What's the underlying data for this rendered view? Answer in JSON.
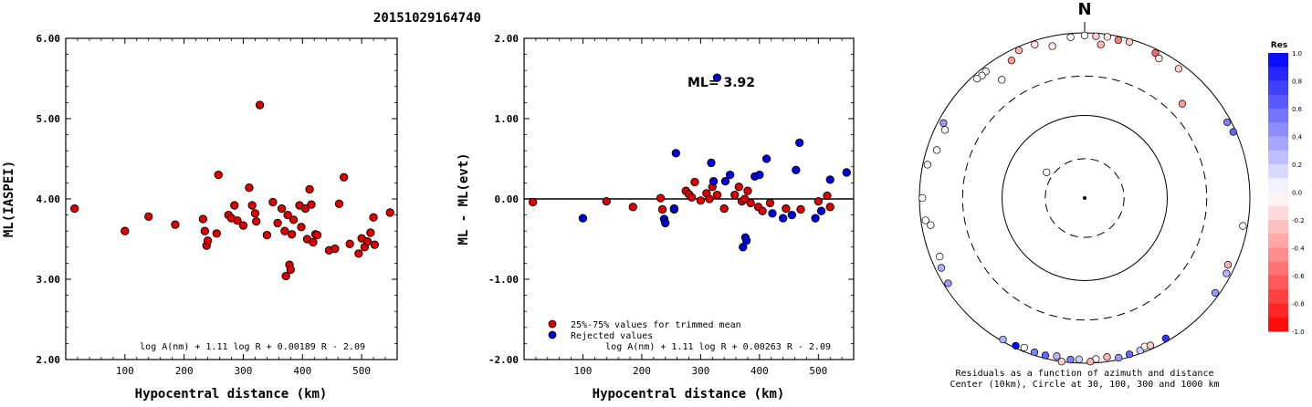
{
  "figure_title": "20151029164740",
  "chart_data": [
    {
      "type": "scatter",
      "title": "",
      "xlabel": "Hypocentral distance (km)",
      "ylabel": "ML(IASPEI)",
      "xlim": [
        0,
        560
      ],
      "ylim": [
        2.0,
        6.0
      ],
      "x_ticks": [
        "100",
        "200",
        "300",
        "400",
        "500"
      ],
      "y_ticks": [
        "2.00",
        "3.00",
        "4.00",
        "5.00",
        "6.00"
      ],
      "grid": false,
      "annotation": "log A(nm) + 1.11 log R + 0.00189 R - 2.09",
      "series": [
        {
          "color": "#dd0000",
          "points": [
            [
              15,
              3.88
            ],
            [
              100,
              3.6
            ],
            [
              140,
              3.78
            ],
            [
              185,
              3.68
            ],
            [
              232,
              3.75
            ],
            [
              235,
              3.6
            ],
            [
              238,
              3.42
            ],
            [
              240,
              3.48
            ],
            [
              255,
              3.57
            ],
            [
              258,
              4.3
            ],
            [
              275,
              3.8
            ],
            [
              280,
              3.76
            ],
            [
              285,
              3.92
            ],
            [
              290,
              3.73
            ],
            [
              300,
              3.67
            ],
            [
              310,
              4.14
            ],
            [
              315,
              3.92
            ],
            [
              320,
              3.82
            ],
            [
              322,
              3.72
            ],
            [
              328,
              5.17
            ],
            [
              340,
              3.55
            ],
            [
              350,
              3.96
            ],
            [
              358,
              3.7
            ],
            [
              365,
              3.88
            ],
            [
              370,
              3.6
            ],
            [
              372,
              3.04
            ],
            [
              375,
              3.8
            ],
            [
              378,
              3.18
            ],
            [
              380,
              3.12
            ],
            [
              382,
              3.56
            ],
            [
              385,
              3.74
            ],
            [
              395,
              3.92
            ],
            [
              398,
              3.65
            ],
            [
              405,
              3.88
            ],
            [
              408,
              3.5
            ],
            [
              412,
              4.12
            ],
            [
              415,
              3.93
            ],
            [
              418,
              3.46
            ],
            [
              422,
              3.56
            ],
            [
              425,
              3.55
            ],
            [
              445,
              3.36
            ],
            [
              455,
              3.38
            ],
            [
              462,
              3.94
            ],
            [
              470,
              4.27
            ],
            [
              480,
              3.44
            ],
            [
              495,
              3.32
            ],
            [
              500,
              3.51
            ],
            [
              505,
              3.4
            ],
            [
              510,
              3.47
            ],
            [
              515,
              3.58
            ],
            [
              520,
              3.77
            ],
            [
              522,
              3.43
            ],
            [
              548,
              3.83
            ]
          ]
        }
      ]
    },
    {
      "type": "scatter",
      "title": "",
      "xlabel": "Hypocentral distance (km)",
      "ylabel": "ML - ML(evt)",
      "xlim": [
        0,
        560
      ],
      "ylim": [
        -2.0,
        2.0
      ],
      "x_ticks": [
        "100",
        "200",
        "300",
        "400",
        "500"
      ],
      "y_ticks": [
        "-2.00",
        "-1.00",
        "0.00",
        "1.00",
        "2.00"
      ],
      "grid": false,
      "ml_label": "ML= 3.92",
      "zero_line": 0.0,
      "annotation": "log A(nm) + 1.11 log R + 0.00263 R - 2.09",
      "legend_position": "bottom-left",
      "series": [
        {
          "name": "25%-75% values for trimmed mean",
          "color": "#dd0000",
          "points": [
            [
              15,
              -0.04
            ],
            [
              140,
              -0.03
            ],
            [
              185,
              -0.1
            ],
            [
              232,
              0.01
            ],
            [
              235,
              -0.13
            ],
            [
              255,
              -0.13
            ],
            [
              275,
              0.1
            ],
            [
              280,
              0.06
            ],
            [
              285,
              0.02
            ],
            [
              290,
              0.21
            ],
            [
              300,
              -0.02
            ],
            [
              310,
              0.07
            ],
            [
              315,
              0.0
            ],
            [
              320,
              0.15
            ],
            [
              328,
              0.05
            ],
            [
              340,
              -0.12
            ],
            [
              358,
              0.05
            ],
            [
              365,
              0.15
            ],
            [
              370,
              -0.03
            ],
            [
              375,
              0.0
            ],
            [
              380,
              0.1
            ],
            [
              385,
              -0.05
            ],
            [
              398,
              -0.1
            ],
            [
              405,
              -0.15
            ],
            [
              418,
              -0.05
            ],
            [
              445,
              -0.12
            ],
            [
              470,
              -0.13
            ],
            [
              500,
              -0.03
            ],
            [
              515,
              0.04
            ],
            [
              520,
              -0.1
            ]
          ]
        },
        {
          "name": "Rejected values",
          "color": "#0000dd",
          "points": [
            [
              100,
              -0.24
            ],
            [
              238,
              -0.25
            ],
            [
              240,
              -0.3
            ],
            [
              258,
              0.57
            ],
            [
              255,
              -0.12
            ],
            [
              318,
              0.45
            ],
            [
              322,
              0.22
            ],
            [
              328,
              1.51
            ],
            [
              342,
              0.22
            ],
            [
              350,
              0.3
            ],
            [
              372,
              -0.6
            ],
            [
              376,
              -0.48
            ],
            [
              378,
              -0.52
            ],
            [
              392,
              0.28
            ],
            [
              400,
              0.3
            ],
            [
              412,
              0.5
            ],
            [
              422,
              -0.18
            ],
            [
              440,
              -0.24
            ],
            [
              455,
              -0.2
            ],
            [
              462,
              0.36
            ],
            [
              468,
              0.7
            ],
            [
              495,
              -0.24
            ],
            [
              505,
              -0.15
            ],
            [
              520,
              0.24
            ],
            [
              548,
              0.33
            ]
          ]
        }
      ]
    },
    {
      "type": "polar-scatter",
      "north_label": "N",
      "caption_line1": "Residuals as a function of azimuth and distance",
      "caption_line2": "Center (10km), Circle at 30, 100, 300 and 1000 km",
      "colorbar_title": "Res",
      "colorbar_ticks": [
        "1.0",
        "0.8",
        "0.6",
        "0.4",
        "0.2",
        "0.0",
        "-0.2",
        "-0.4",
        "-0.6",
        "-0.8",
        "-1.0"
      ],
      "rings_km": [
        30,
        100,
        300,
        1000
      ],
      "stations": [
        {
          "az": -5,
          "dist": 900,
          "res": 0.0
        },
        {
          "az": 0,
          "dist": 930,
          "res": 0.0
        },
        {
          "az": 4,
          "dist": 920,
          "res": -0.2
        },
        {
          "az": 8,
          "dist": 935,
          "res": -0.1
        },
        {
          "az": 12,
          "dist": 900,
          "res": -0.5
        },
        {
          "az": 16,
          "dist": 925,
          "res": -0.2
        },
        {
          "az": 6,
          "dist": 740,
          "res": -0.3
        },
        {
          "az": -12,
          "dist": 760,
          "res": -0.1
        },
        {
          "az": -18,
          "dist": 900,
          "res": -0.1
        },
        {
          "az": -24,
          "dist": 905,
          "res": -0.3
        },
        {
          "az": -28,
          "dist": 770,
          "res": -0.4
        },
        {
          "az": -38,
          "dist": 880,
          "res": 0.0
        },
        {
          "az": -40,
          "dist": 860,
          "res": 0.0
        },
        {
          "az": -42,
          "dist": 880,
          "res": 0.0
        },
        {
          "az": -35,
          "dist": 560,
          "res": 0.0
        },
        {
          "az": 26,
          "dist": 900,
          "res": -0.6
        },
        {
          "az": 28,
          "dist": 820,
          "res": -0.1
        },
        {
          "az": 36,
          "dist": 860,
          "res": -0.2
        },
        {
          "az": 46,
          "dist": 440,
          "res": -0.4
        },
        {
          "az": 62,
          "dist": 900,
          "res": 0.5
        },
        {
          "az": 66,
          "dist": 930,
          "res": 0.6
        },
        {
          "az": -62,
          "dist": 860,
          "res": 0.4
        },
        {
          "az": -64,
          "dist": 760,
          "res": 0.0
        },
        {
          "az": -78,
          "dist": 880,
          "res": 0.0
        },
        {
          "az": -100,
          "dist": 780,
          "res": 0.0
        },
        {
          "az": -112,
          "dist": 780,
          "res": 0.0
        },
        {
          "az": -116,
          "dist": 850,
          "res": 0.3
        },
        {
          "az": -122,
          "dist": 890,
          "res": 0.4
        },
        {
          "az": -150,
          "dist": 950,
          "res": 0.3
        },
        {
          "az": -155,
          "dist": 940,
          "res": 1.0
        },
        {
          "az": -158,
          "dist": 900,
          "res": 0.0
        },
        {
          "az": -162,
          "dist": 920,
          "res": 0.5
        },
        {
          "az": -166,
          "dist": 920,
          "res": 0.6
        },
        {
          "az": -170,
          "dist": 880,
          "res": 0.3
        },
        {
          "az": -175,
          "dist": 920,
          "res": 0.5
        },
        {
          "az": -178,
          "dist": 900,
          "res": 0.2
        },
        {
          "az": 176,
          "dist": 900,
          "res": 0.0
        },
        {
          "az": 172,
          "dist": 880,
          "res": -0.3
        },
        {
          "az": 168,
          "dist": 950,
          "res": 0.4
        },
        {
          "az": 164,
          "dist": 930,
          "res": 0.6
        },
        {
          "az": 160,
          "dist": 920,
          "res": 0.2
        },
        {
          "az": 158,
          "dist": 870,
          "res": 0.0
        },
        {
          "az": 156,
          "dist": 900,
          "res": -0.2
        },
        {
          "az": 150,
          "dist": 920,
          "res": 0.8
        },
        {
          "az": -172,
          "dist": 1000,
          "res": -0.2
        },
        {
          "az": 178,
          "dist": 960,
          "res": -0.3
        },
        {
          "az": 100,
          "dist": 880,
          "res": 0.0
        },
        {
          "az": 115,
          "dist": 820,
          "res": -0.3
        },
        {
          "az": 118,
          "dist": 880,
          "res": 0.3
        },
        {
          "az": 126,
          "dist": 900,
          "res": 0.4
        },
        {
          "az": -90,
          "dist": 920,
          "res": 0.0
        },
        {
          "az": -98,
          "dist": 880,
          "res": 0.0
        },
        {
          "az": -72,
          "dist": 760,
          "res": 0.0
        },
        {
          "az": -56,
          "dist": 36,
          "res": 0.0
        }
      ]
    }
  ]
}
